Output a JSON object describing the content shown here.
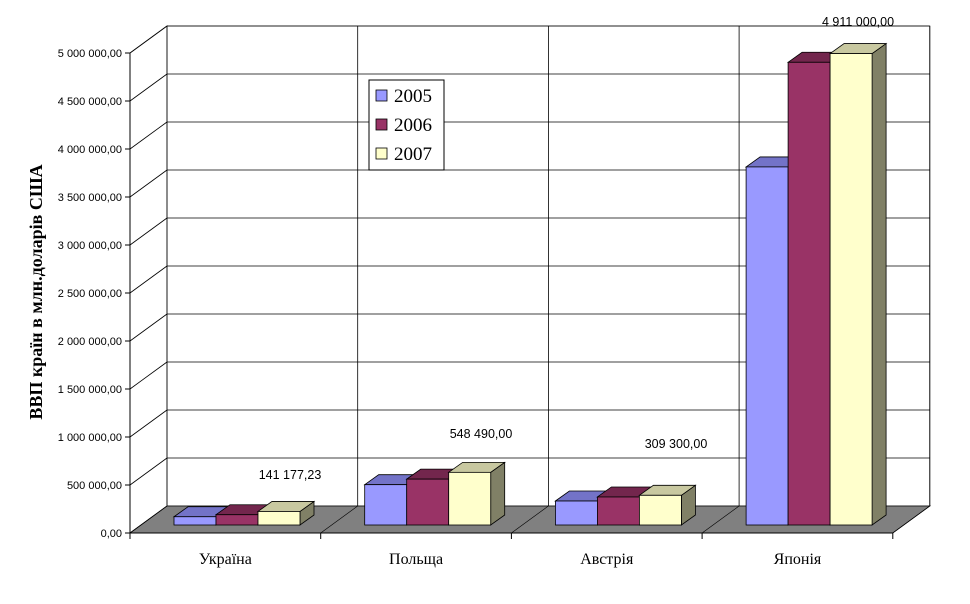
{
  "chart_data": {
    "type": "bar",
    "style": "3d-clustered",
    "title": "",
    "xlabel": "",
    "ylabel": "ВВП країн в млн.доларів США",
    "ylim": [
      0,
      5000000
    ],
    "yticks": [
      "0,00",
      "500 000,00",
      "1 000 000,00",
      "1 500 000,00",
      "2 000 000,00",
      "2 500 000,00",
      "3 000 000,00",
      "3 500 000,00",
      "4 000 000,00",
      "4 500 000,00",
      "5 000 000,00"
    ],
    "ytick_values": [
      0,
      500000,
      1000000,
      1500000,
      2000000,
      2500000,
      3000000,
      3500000,
      4000000,
      4500000,
      5000000
    ],
    "categories": [
      "Україна",
      "Польща",
      "Австрія",
      "Японія"
    ],
    "series": [
      {
        "name": "2005",
        "color": "#9999FF",
        "top": "#7373C8",
        "side": "#5C5C99",
        "values": [
          86000,
          420000,
          250000,
          3730000
        ]
      },
      {
        "name": "2006",
        "color": "#993366",
        "top": "#73264D",
        "side": "#5C1F3D",
        "values": [
          107000,
          478000,
          292000,
          4820000
        ]
      },
      {
        "name": "2007",
        "color": "#FFFFCC",
        "top": "#C8C8A0",
        "side": "#808066",
        "values": [
          141177.23,
          548490,
          309300,
          4911000
        ]
      }
    ],
    "data_labels": [
      "141 177,23",
      "548 490,00",
      "309 300,00",
      "4 911 000,00"
    ],
    "legend": {
      "placement": "top-left-inside",
      "entries": [
        "2005",
        "2006",
        "2007"
      ]
    },
    "grid": true
  }
}
